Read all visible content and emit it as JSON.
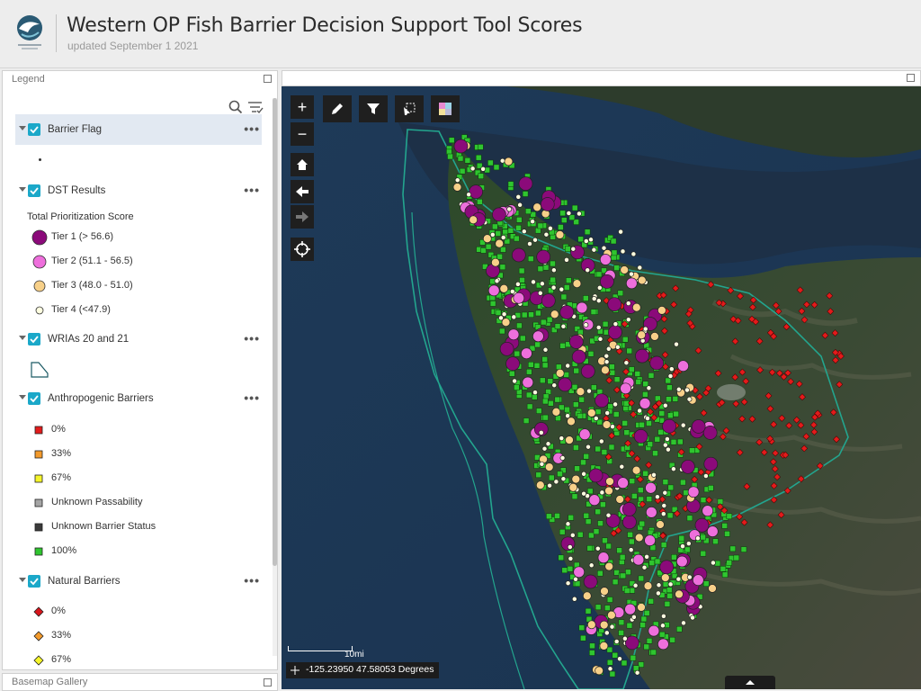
{
  "header": {
    "title": "Western OP Fish Barrier Decision Support Tool Scores",
    "subtitle": "updated September 1 2021"
  },
  "legend": {
    "panel_title": "Legend",
    "layers": [
      {
        "name": "Barrier Flag",
        "checked": true
      },
      {
        "name": "DST Results",
        "checked": true,
        "subheader": "Total Prioritization Score",
        "symbols": [
          {
            "label": "Tier 1 (> 56.6)",
            "color": "#8b0a7a"
          },
          {
            "label": "Tier 2 (51.1 - 56.5)",
            "color": "#ee6fdc"
          },
          {
            "label": "Tier 3 (48.0 - 51.0)",
            "color": "#f7d089"
          },
          {
            "label": "Tier 4 (<47.9)",
            "color": "#ffffe0"
          }
        ]
      },
      {
        "name": "WRIAs 20 and 21",
        "checked": true
      },
      {
        "name": "Anthropogenic Barriers",
        "checked": true,
        "symbols": [
          {
            "label": "0%",
            "color": "#e21b1b"
          },
          {
            "label": "33%",
            "color": "#f39a2b"
          },
          {
            "label": "67%",
            "color": "#f5f52a"
          },
          {
            "label": "Unknown Passability",
            "color": "#a5a5a5"
          },
          {
            "label": "Unknown Barrier Status",
            "color": "#3a3a3a"
          },
          {
            "label": "100%",
            "color": "#2fc52f"
          }
        ]
      },
      {
        "name": "Natural Barriers",
        "checked": true,
        "symbols": [
          {
            "label": "0%",
            "color": "#d8161c"
          },
          {
            "label": "33%",
            "color": "#f39a2b"
          },
          {
            "label": "67%",
            "color": "#f5f52a"
          }
        ]
      }
    ],
    "more_label": "•••"
  },
  "basemap": {
    "panel_title": "Basemap Gallery"
  },
  "map": {
    "tools": {
      "zoom_in": "+",
      "zoom_out": "−"
    },
    "scale_label": "10mi",
    "coordinates": "-125.23950 47.58053 Degrees"
  },
  "icons": [
    "search-icon",
    "filter-icon",
    "pencil-icon",
    "funnel-icon",
    "select-icon",
    "layers-icon",
    "home-icon",
    "back-arrow-icon",
    "forward-arrow-icon",
    "locate-icon"
  ]
}
